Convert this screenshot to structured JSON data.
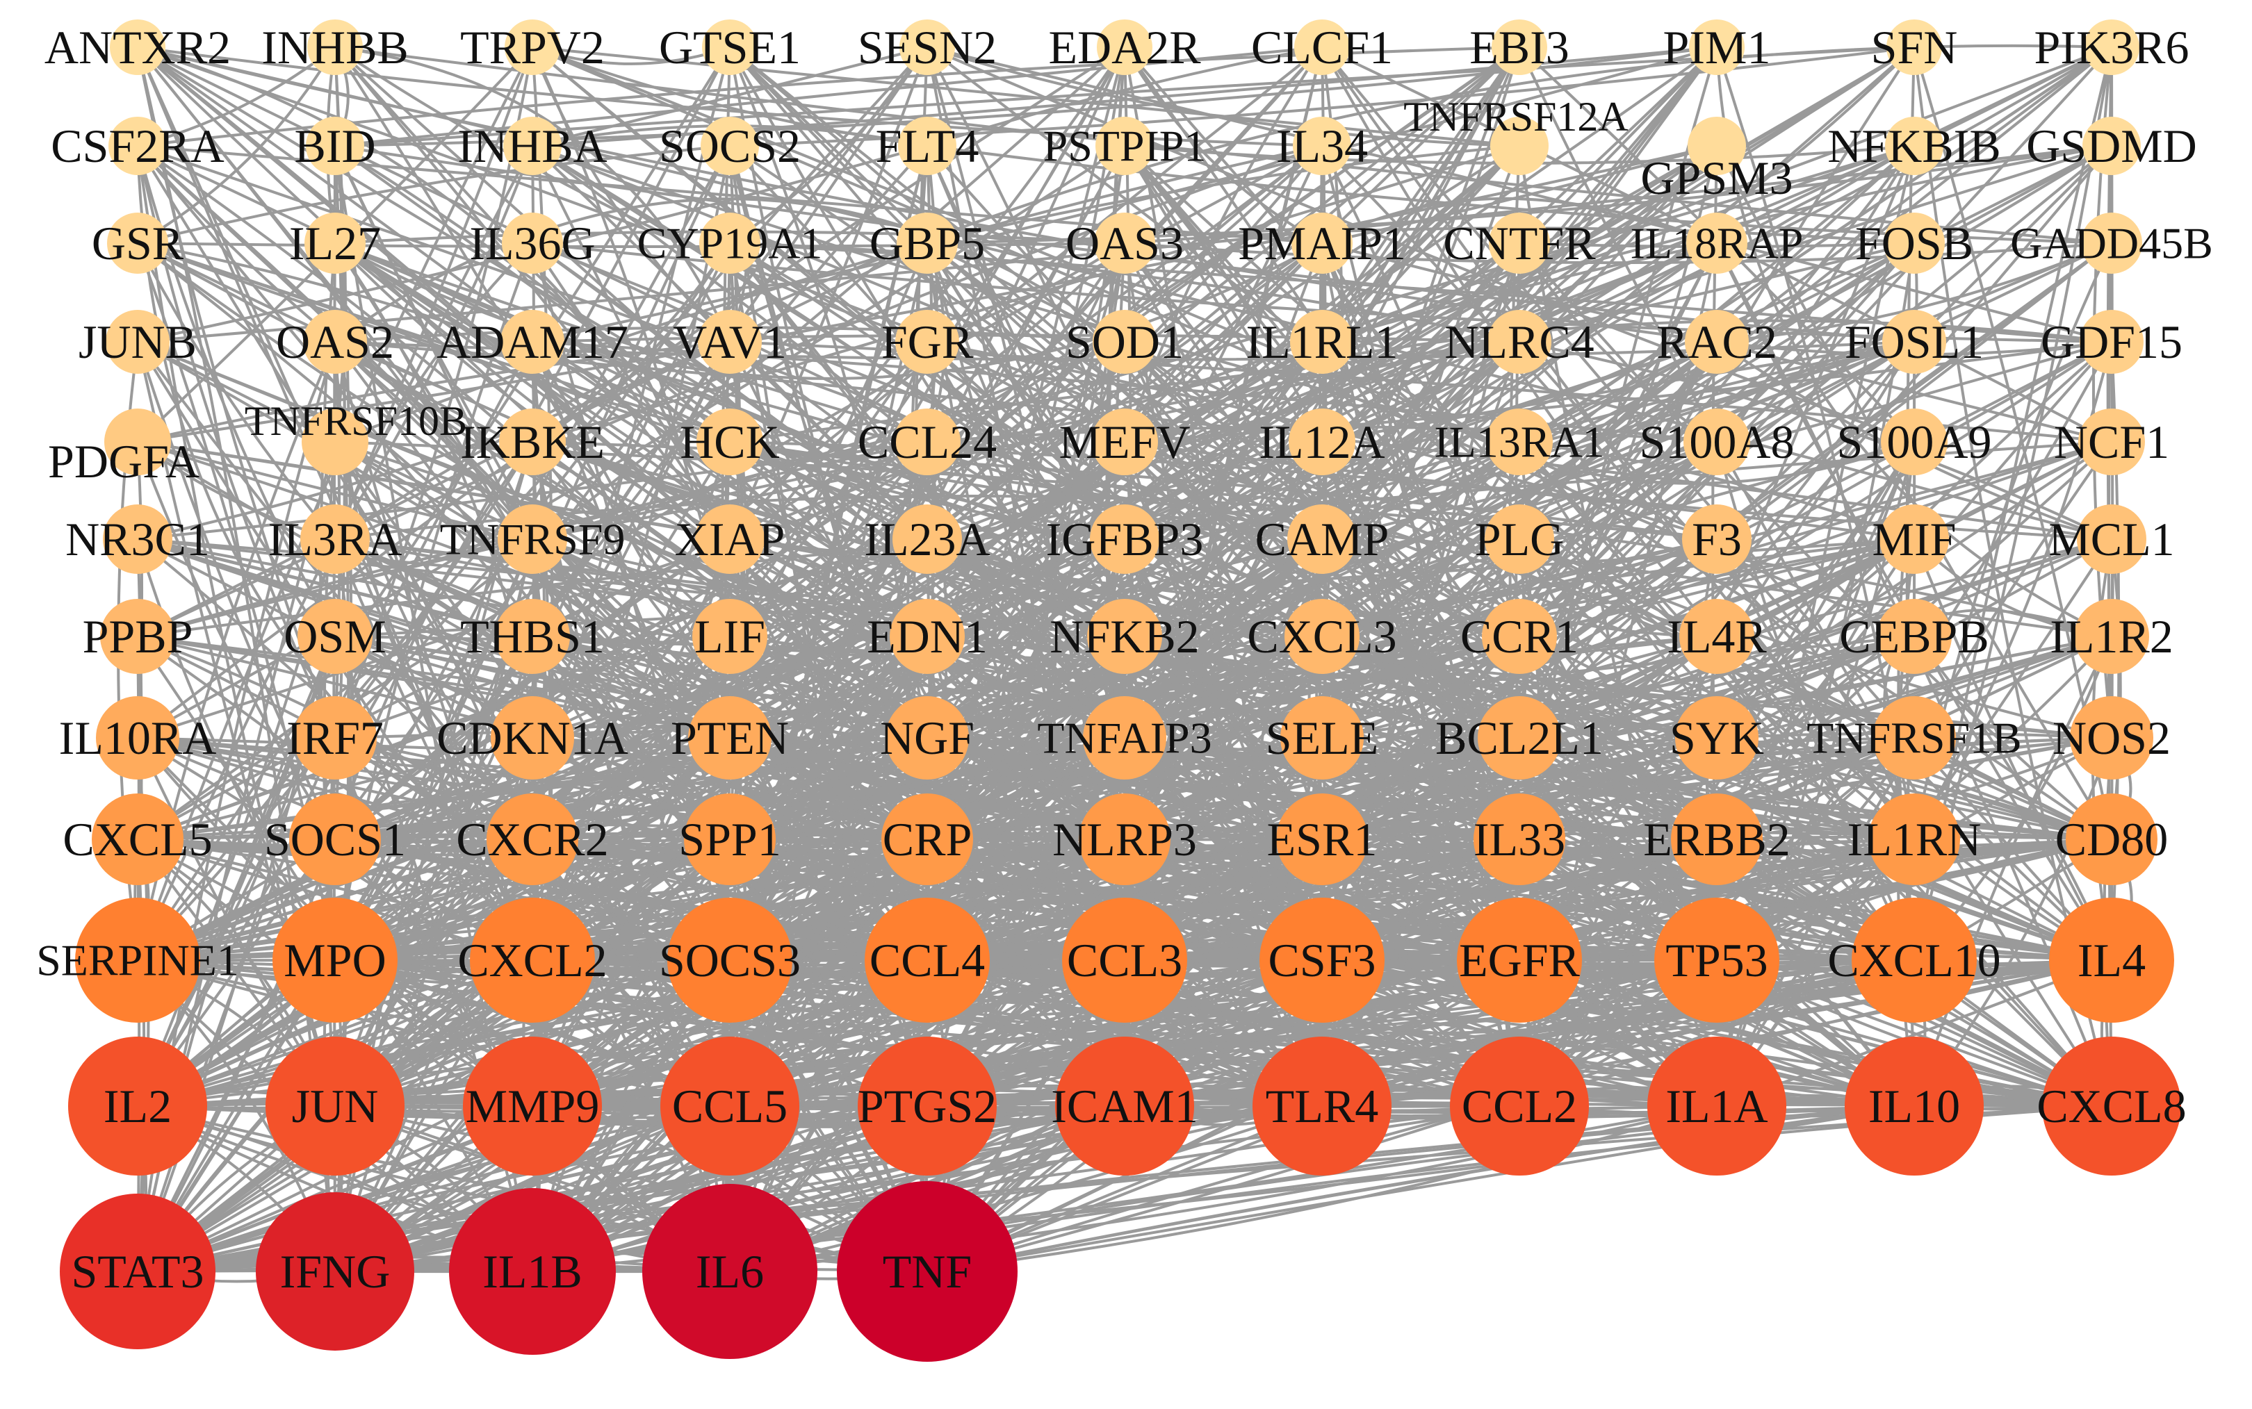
{
  "title": "",
  "rows": [
    [
      "ANTXR2",
      "INHBB",
      "TRPV2",
      "GTSE1",
      "SESN2",
      "EDA2R",
      "CLCF1",
      "EBI3",
      "PIM1",
      "SFN",
      "PIK3R6"
    ],
    [
      "CSF2RA",
      "BID",
      "INHBA",
      "SOCS2",
      "FLT4",
      "PSTPIP1",
      "IL34",
      "TNFRSF12A",
      "GPSM3",
      "NFKBIB",
      "GSDMD"
    ],
    [
      "GSR",
      "IL27",
      "IL36G",
      "CYP19A1",
      "GBP5",
      "OAS3",
      "PMAIP1",
      "CNTFR",
      "IL18RAP",
      "FOSB",
      "GADD45B"
    ],
    [
      "JUNB",
      "OAS2",
      "ADAM17",
      "VAV1",
      "FGR",
      "SOD1",
      "IL1RL1",
      "NLRC4",
      "RAC2",
      "FOSL1",
      "GDF15"
    ],
    [
      "PDGFA",
      "TNFRSF10B",
      "IKBKE",
      "HCK",
      "CCL24",
      "MEFV",
      "IL12A",
      "IL13RA1",
      "S100A8",
      "S100A9",
      "NCF1"
    ],
    [
      "NR3C1",
      "IL3RA",
      "TNFRSF9",
      "XIAP",
      "IL23A",
      "IGFBP3",
      "CAMP",
      "PLG",
      "F3",
      "MIF",
      "MCL1"
    ],
    [
      "PPBP",
      "OSM",
      "THBS1",
      "LIF",
      "EDN1",
      "NFKB2",
      "CXCL3",
      "CCR1",
      "IL4R",
      "CEBPB",
      "IL1R2"
    ],
    [
      "IL10RA",
      "IRF7",
      "CDKN1A",
      "PTEN",
      "NGF",
      "TNFAIP3",
      "SELE",
      "BCL2L1",
      "SYK",
      "TNFRSF1B",
      "NOS2"
    ],
    [
      "CXCL5",
      "SOCS1",
      "CXCR2",
      "SPP1",
      "CRP",
      "NLRP3",
      "ESR1",
      "IL33",
      "ERBB2",
      "IL1RN",
      "CD80"
    ],
    [
      "SERPINE1",
      "MPO",
      "CXCL2",
      "SOCS3",
      "CCL4",
      "CCL3",
      "CSF3",
      "EGFR",
      "TP53",
      "CXCL10",
      "IL4"
    ],
    [
      "IL2",
      "JUN",
      "MMP9",
      "CCL5",
      "PTGS2",
      "ICAM1",
      "TLR4",
      "CCL2",
      "IL1A",
      "IL10",
      "CXCL8"
    ],
    [
      "STAT3",
      "IFNG",
      "IL1B",
      "IL6",
      "TNF"
    ]
  ],
  "row_colors": [
    "#ffe0a0",
    "#ffdc9a",
    "#ffd692",
    "#ffd08a",
    "#ffca82",
    "#ffc278",
    "#ffb86c",
    "#ffab5c",
    "#ff9a48",
    "#ff8030",
    "#f4522a",
    "#d41d2a"
  ],
  "last_row_colors": [
    "#e83028",
    "#dd2228",
    "#d81428",
    "#d00a2a",
    "#cc002a"
  ],
  "edge_color": "#9a9a9a",
  "background_color": "#ffffff",
  "caption": ""
}
